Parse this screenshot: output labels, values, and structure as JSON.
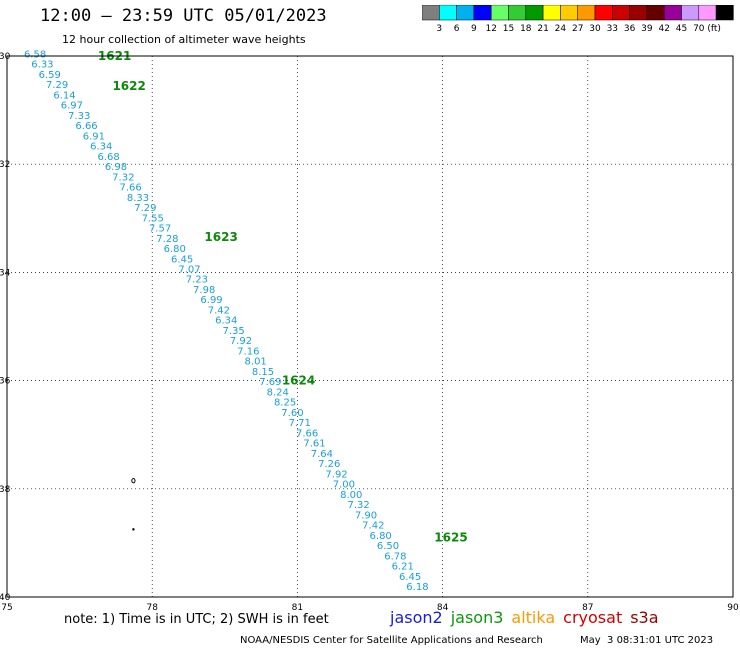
{
  "header": {
    "title": "12:00 – 23:59 UTC 05/01/2023",
    "subtitle": "12 hour collection of altimeter wave heights"
  },
  "color_scale": {
    "colors": [
      "#7f7f7f",
      "#00ffff",
      "#00b0f0",
      "#0000ff",
      "#66ff66",
      "#33cc33",
      "#009900",
      "#ffff00",
      "#ffcc00",
      "#ff9900",
      "#ff0000",
      "#cc0000",
      "#990000",
      "#660000",
      "#990099",
      "#cc99ff",
      "#ff99ff",
      "#000000"
    ],
    "labels": [
      "3",
      "6",
      "9",
      "12",
      "15",
      "18",
      "21",
      "24",
      "27",
      "30",
      "33",
      "36",
      "39",
      "42",
      "45",
      "70"
    ],
    "unit": "(ft)"
  },
  "chart_data": {
    "type": "scatter",
    "x_axis": {
      "range": [
        75,
        90
      ],
      "ticks": [
        "75",
        "78",
        "81",
        "84",
        "87",
        "90"
      ]
    },
    "y_axis": {
      "range": [
        -40,
        -30
      ],
      "ticks": [
        "-30",
        "-32",
        "-34",
        "-36",
        "-38",
        "-40"
      ]
    },
    "grid": true,
    "pass_times": [
      {
        "label": "1621",
        "x": 76.3,
        "y": -30.0
      },
      {
        "label": "1622",
        "x": 76.6,
        "y": -30.55
      },
      {
        "label": "1623",
        "x": 78.5,
        "y": -33.35
      },
      {
        "label": "1624",
        "x": 80.1,
        "y": -36.0
      },
      {
        "label": "1625",
        "x": 83.25,
        "y": -38.9
      }
    ],
    "wave_heights": {
      "values": [
        "6.58",
        "6.33",
        "6.59",
        "7.29",
        "6.14",
        "6.97",
        "7.33",
        "6.66",
        "6.91",
        "6.34",
        "6.68",
        "6.98",
        "7.32",
        "7.66",
        "8.33",
        "7.29",
        "7.55",
        "7.57",
        "7.28",
        "6.80",
        "6.45",
        "7.07",
        "7.23",
        "7.98",
        "6.99",
        "7.42",
        "6.34",
        "7.35",
        "7.92",
        "7.16",
        "8.01",
        "8.15",
        "7.69",
        "8.24",
        "8.25",
        "7.60",
        "7.71",
        "7.66",
        "7.61",
        "7.64",
        "7.26",
        "7.92",
        "7.00",
        "8.00",
        "7.32",
        "7.90",
        "7.42",
        "6.80",
        "6.50",
        "6.78",
        "6.21",
        "6.45",
        "6.18"
      ],
      "start": {
        "x": 75.35,
        "y": -29.95
      },
      "end": {
        "x": 83.25,
        "y": -39.8
      }
    },
    "markers": [
      {
        "x": 77.55,
        "y": -37.85
      },
      {
        "x": 77.55,
        "y": -38.75
      }
    ]
  },
  "footer": {
    "note": "note:  1) Time is in UTC; 2) SWH is in feet",
    "satellites": [
      {
        "name": "jason2",
        "color": "#1a1ae6"
      },
      {
        "name": "jason3",
        "color": "#0a9a0a"
      },
      {
        "name": "altika",
        "color": "#ff9900"
      },
      {
        "name": "cryosat",
        "color": "#d40000"
      },
      {
        "name": "s3a",
        "color": "#990000"
      }
    ],
    "credit": "NOAA/NESDIS Center for Satellite Applications and Research",
    "timestamp": "May  3 08:31:01 UTC 2023"
  }
}
